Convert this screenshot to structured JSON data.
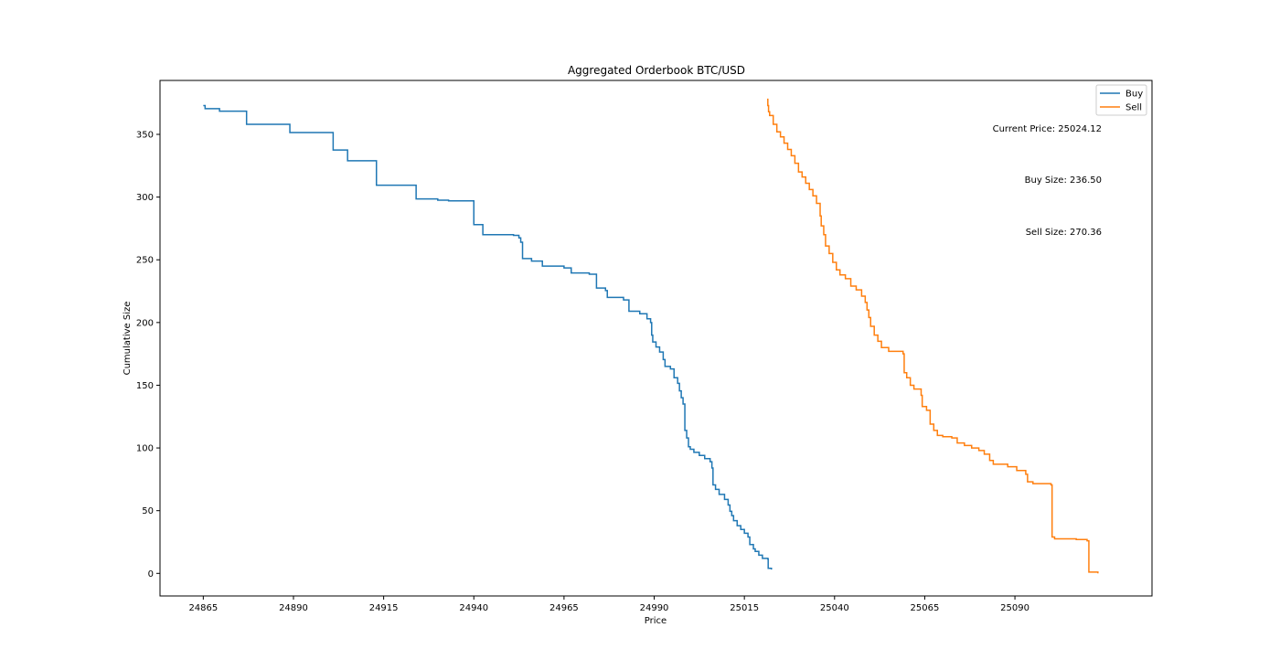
{
  "chart_data": {
    "type": "line",
    "title": "Aggregated Orderbook BTC/USD",
    "xlabel": "Price",
    "ylabel": "Cumulative Size",
    "xlim": [
      24853,
      25128
    ],
    "ylim": [
      -18,
      393
    ],
    "xticks": [
      24865,
      24890,
      24915,
      24940,
      24965,
      24990,
      25015,
      25040,
      25065,
      25090
    ],
    "yticks": [
      0,
      50,
      100,
      150,
      200,
      250,
      300,
      350
    ],
    "grid": false,
    "legend_position": "top-right",
    "legend": [
      {
        "label": "Buy",
        "color": "#1f77b4"
      },
      {
        "label": "Sell",
        "color": "#ff7f0e"
      }
    ],
    "annotations": [
      "Current Price: 25024.12",
      "Buy Size: 236.50",
      "Sell Size: 270.36"
    ],
    "series": [
      {
        "name": "Buy",
        "color": "#1f77b4",
        "step": true,
        "points": [
          [
            24865.0,
            373
          ],
          [
            24865.5,
            370.5
          ],
          [
            24869.5,
            368.5
          ],
          [
            24877,
            358
          ],
          [
            24889,
            351.5
          ],
          [
            24901,
            337.5
          ],
          [
            24905,
            329
          ],
          [
            24913,
            309.5
          ],
          [
            24924,
            298.5
          ],
          [
            24930,
            297.5
          ],
          [
            24933,
            297
          ],
          [
            24940,
            278
          ],
          [
            24942.5,
            270
          ],
          [
            24951,
            269.5
          ],
          [
            24952.5,
            267.5
          ],
          [
            24953,
            264
          ],
          [
            24953.5,
            251
          ],
          [
            24956,
            249
          ],
          [
            24959,
            245
          ],
          [
            24965,
            243.5
          ],
          [
            24967,
            239.5
          ],
          [
            24972,
            238.5
          ],
          [
            24974,
            227.5
          ],
          [
            24976.5,
            225.5
          ],
          [
            24977,
            220
          ],
          [
            24981.5,
            218
          ],
          [
            24983,
            209
          ],
          [
            24986,
            207
          ],
          [
            24988,
            203
          ],
          [
            24989,
            200
          ],
          [
            24989.3,
            190
          ],
          [
            24989.6,
            184.5
          ],
          [
            24990.5,
            180.5
          ],
          [
            24991.5,
            176.5
          ],
          [
            24992.5,
            170.5
          ],
          [
            24993,
            165
          ],
          [
            24994.5,
            163
          ],
          [
            24995.5,
            156
          ],
          [
            24996.5,
            151.5
          ],
          [
            24997,
            145.5
          ],
          [
            24997.5,
            140
          ],
          [
            24998,
            135
          ],
          [
            24998.5,
            114
          ],
          [
            24999,
            108
          ],
          [
            24999.5,
            101
          ],
          [
            25000,
            99
          ],
          [
            25001,
            96.5
          ],
          [
            25002.5,
            94
          ],
          [
            25004,
            91.5
          ],
          [
            25005.5,
            89
          ],
          [
            25006,
            84
          ],
          [
            25006.3,
            70.5
          ],
          [
            25007,
            67
          ],
          [
            25008,
            63
          ],
          [
            25009.5,
            59
          ],
          [
            25010.5,
            54.5
          ],
          [
            25011,
            49.5
          ],
          [
            25011.5,
            46
          ],
          [
            25012,
            42
          ],
          [
            25013,
            38
          ],
          [
            25014,
            35
          ],
          [
            25015,
            32
          ],
          [
            25016,
            29
          ],
          [
            25016.5,
            23
          ],
          [
            25017.5,
            19.5
          ],
          [
            25018,
            17.5
          ],
          [
            25019,
            14.5
          ],
          [
            25020,
            12
          ],
          [
            25021.5,
            11.5
          ],
          [
            25021.6,
            4
          ],
          [
            25022.5,
            3
          ]
        ]
      },
      {
        "name": "Sell",
        "color": "#ff7f0e",
        "step": true,
        "points": [
          [
            25021.3,
            378
          ],
          [
            25021.5,
            373
          ],
          [
            25021.7,
            368
          ],
          [
            25022,
            365
          ],
          [
            25023,
            358
          ],
          [
            25024,
            352
          ],
          [
            25025,
            348
          ],
          [
            25026,
            343
          ],
          [
            25027,
            338
          ],
          [
            25028,
            333
          ],
          [
            25029,
            327
          ],
          [
            25030,
            320
          ],
          [
            25031,
            316
          ],
          [
            25032,
            311
          ],
          [
            25033,
            306
          ],
          [
            25034,
            301
          ],
          [
            25035,
            295
          ],
          [
            25036,
            285
          ],
          [
            25036.3,
            277
          ],
          [
            25037,
            270
          ],
          [
            25037.5,
            261
          ],
          [
            25038.5,
            255
          ],
          [
            25039.5,
            248
          ],
          [
            25040.5,
            242
          ],
          [
            25041.5,
            238
          ],
          [
            25043,
            235
          ],
          [
            25044.5,
            229
          ],
          [
            25046,
            226
          ],
          [
            25047.5,
            221
          ],
          [
            25048.5,
            216
          ],
          [
            25049,
            210
          ],
          [
            25049.5,
            204
          ],
          [
            25050,
            197
          ],
          [
            25051,
            190
          ],
          [
            25052,
            185
          ],
          [
            25053,
            180
          ],
          [
            25055,
            177
          ],
          [
            25059,
            175
          ],
          [
            25059.3,
            160
          ],
          [
            25060,
            156
          ],
          [
            25061,
            150
          ],
          [
            25062,
            147
          ],
          [
            25064,
            142
          ],
          [
            25064.3,
            133
          ],
          [
            25065.5,
            130
          ],
          [
            25066.5,
            119
          ],
          [
            25067.5,
            114
          ],
          [
            25068.5,
            110
          ],
          [
            25070,
            109
          ],
          [
            25072.5,
            108
          ],
          [
            25074,
            104
          ],
          [
            25076,
            102
          ],
          [
            25078,
            100
          ],
          [
            25080,
            98
          ],
          [
            25081.5,
            95
          ],
          [
            25083,
            90
          ],
          [
            25084,
            87
          ],
          [
            25088,
            85
          ],
          [
            25090.5,
            82
          ],
          [
            25093,
            79
          ],
          [
            25093.5,
            73
          ],
          [
            25095,
            71.5
          ],
          [
            25100,
            70.5
          ],
          [
            25100.3,
            29
          ],
          [
            25101,
            27.5
          ],
          [
            25107,
            27
          ],
          [
            25110,
            26
          ],
          [
            25110.5,
            1
          ],
          [
            25113,
            0
          ]
        ]
      }
    ]
  }
}
